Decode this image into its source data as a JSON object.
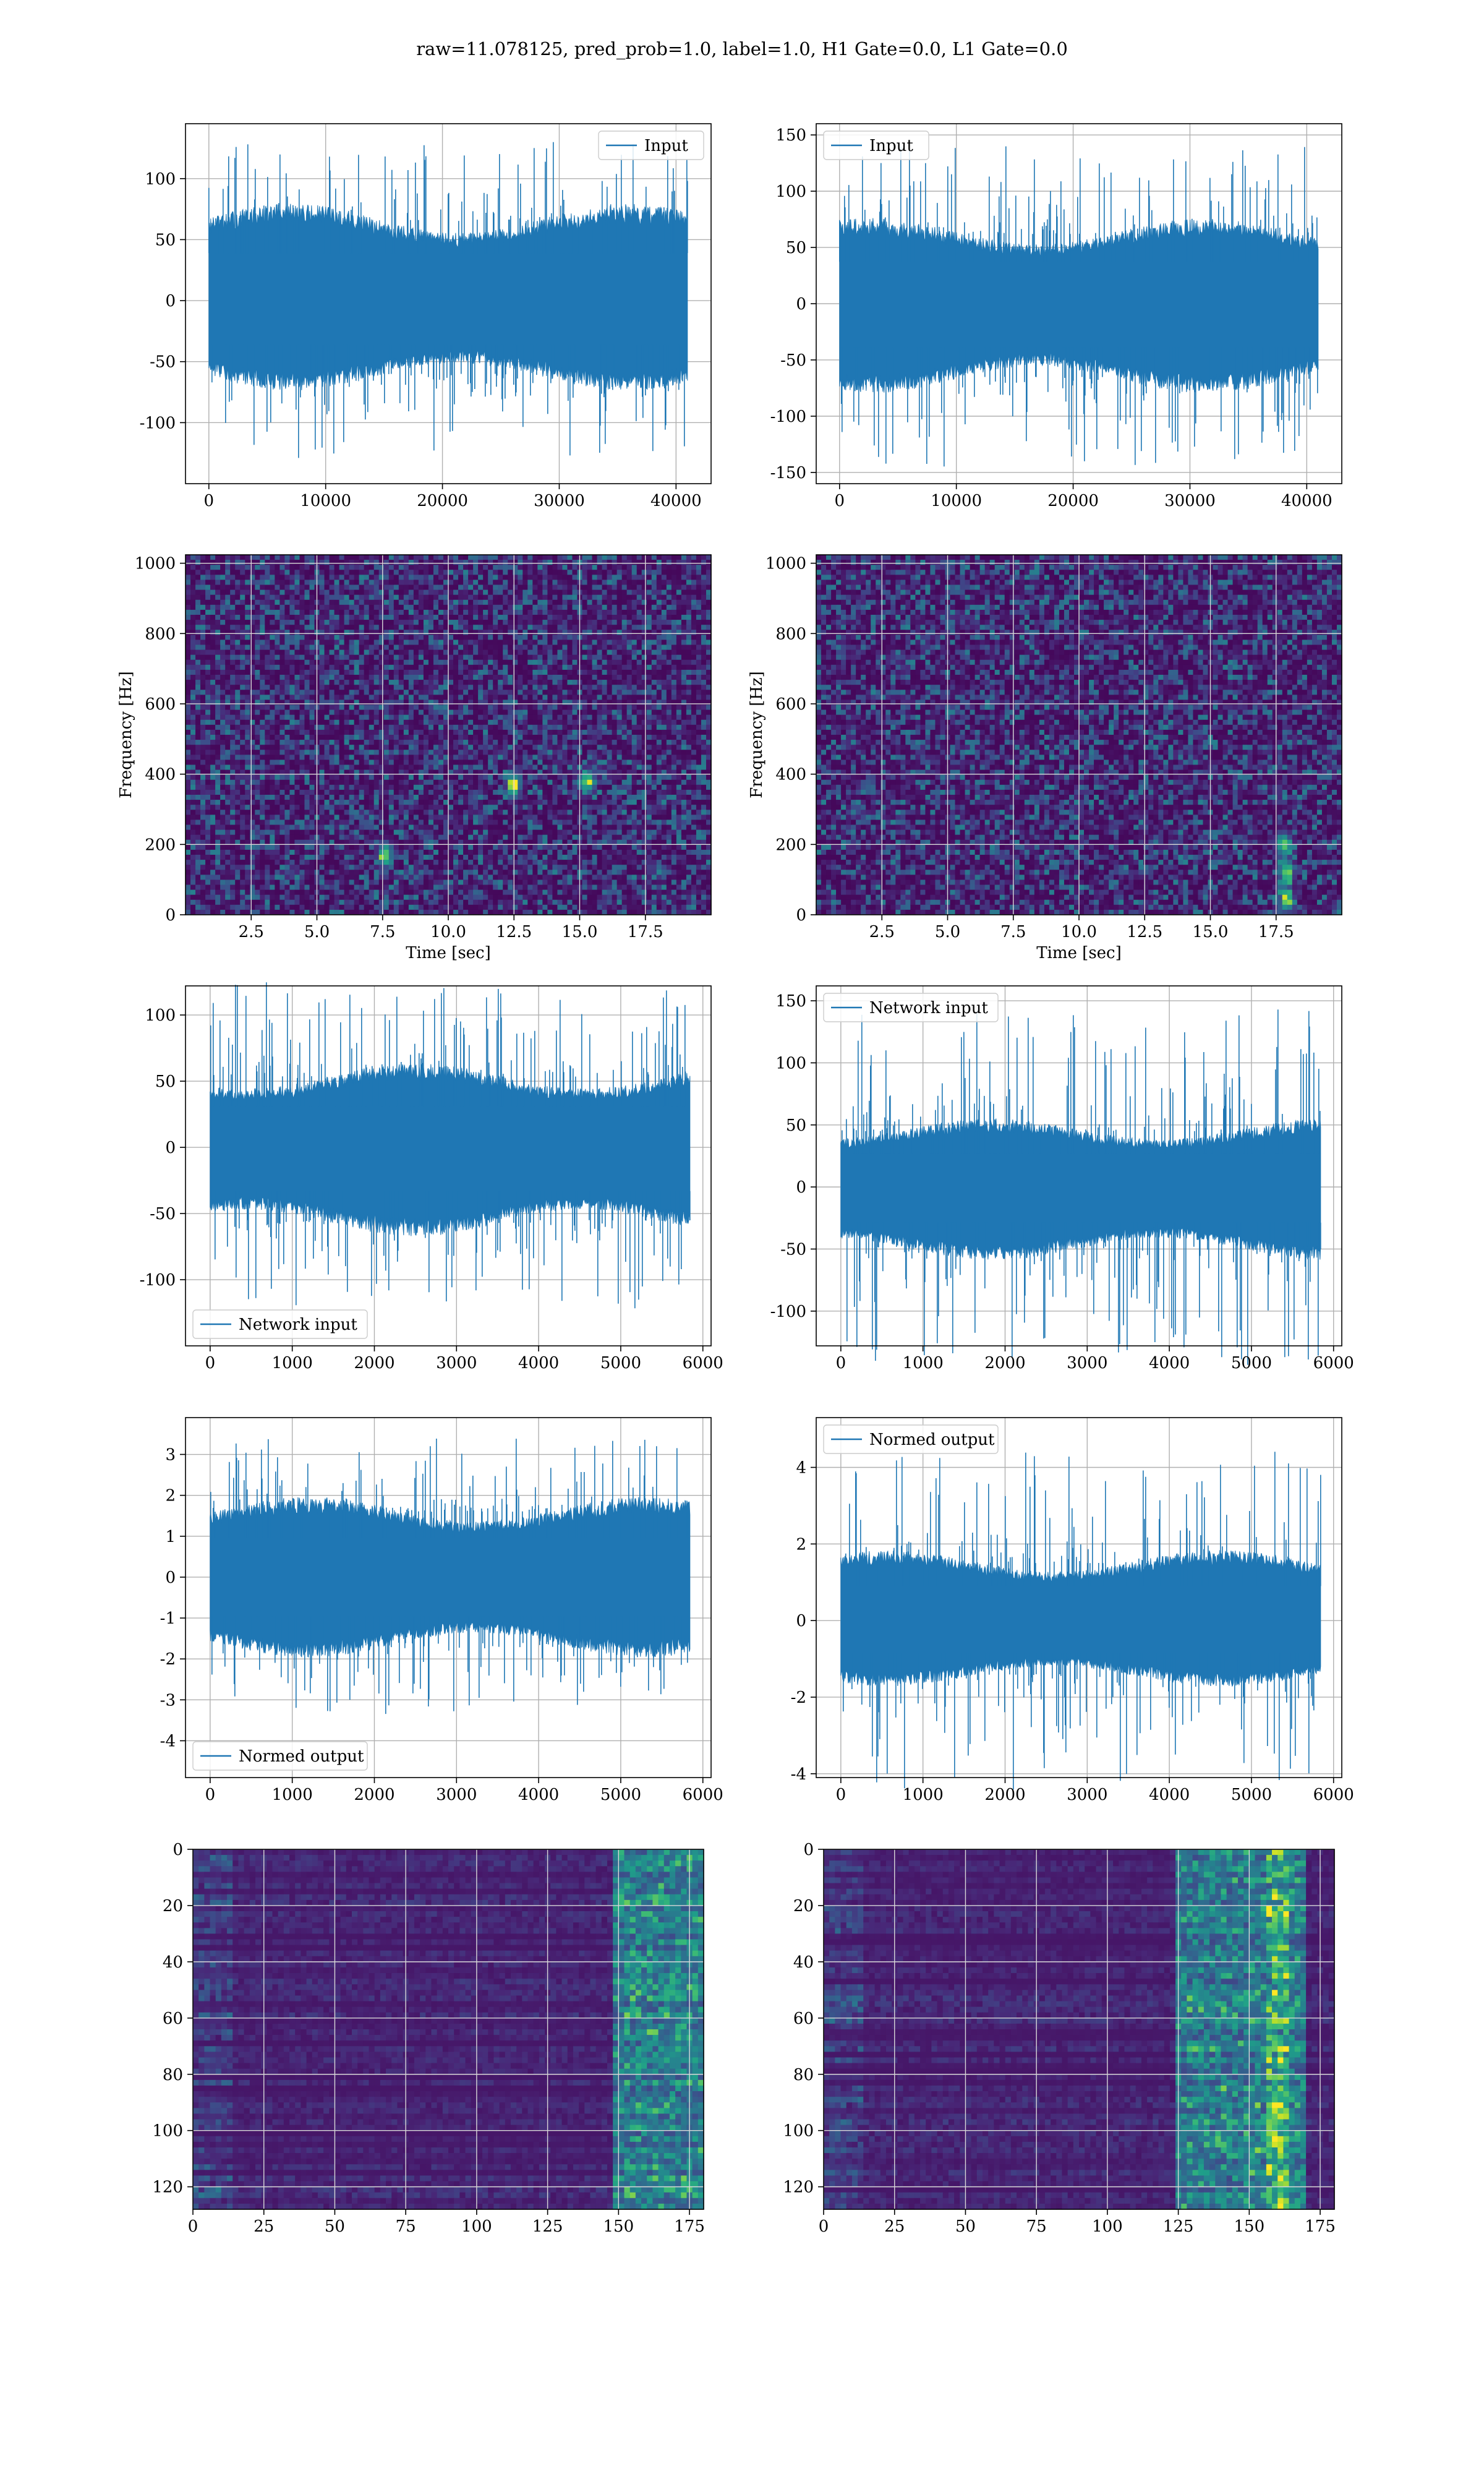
{
  "suptitle": "raw=11.078125, pred_prob=1.0, label=1.0, H1 Gate=0.0, L1 Gate=0.0",
  "colors": {
    "line": "#1f77b4",
    "grid": "#b0b0b0",
    "viridis_low": "#440154",
    "viridis_mid": "#21918c",
    "viridis_high": "#fde725"
  },
  "chart_data": [
    {
      "id": "h1-input",
      "type": "line",
      "legend": "Input",
      "legend_loc": "upper right",
      "xlim": [
        -2000,
        43000
      ],
      "ylim": [
        -150,
        145
      ],
      "xticks": [
        0,
        10000,
        20000,
        30000,
        40000
      ],
      "yticks": [
        -100,
        -50,
        0,
        50,
        100
      ],
      "x_range": [
        0,
        40960
      ],
      "band": [
        -60,
        65
      ],
      "spike_amp": 130
    },
    {
      "id": "l1-input",
      "type": "line",
      "legend": "Input",
      "legend_loc": "upper left",
      "xlim": [
        -2000,
        43000
      ],
      "ylim": [
        -160,
        160
      ],
      "xticks": [
        0,
        10000,
        20000,
        30000,
        40000
      ],
      "yticks": [
        -150,
        -100,
        -50,
        0,
        50,
        100,
        150
      ],
      "x_range": [
        0,
        40960
      ],
      "band": [
        -65,
        62
      ],
      "spike_amp": 145
    },
    {
      "id": "h1-spectrogram",
      "type": "heatmap",
      "xlabel": "Time [sec]",
      "ylabel": "Frequency [Hz]",
      "xlim": [
        0,
        20
      ],
      "ylim": [
        0,
        1024
      ],
      "xticks": [
        2.5,
        5.0,
        7.5,
        10.0,
        12.5,
        15.0,
        17.5
      ],
      "xtick_labels": [
        "2.5",
        "5.0",
        "7.5",
        "10.0",
        "12.5",
        "15.0",
        "17.5"
      ],
      "yticks": [
        0,
        200,
        400,
        600,
        800,
        1000
      ],
      "colormap": "viridis",
      "hot_spots": [
        [
          12.5,
          370
        ],
        [
          15.3,
          380
        ],
        [
          7.6,
          170
        ]
      ]
    },
    {
      "id": "l1-spectrogram",
      "type": "heatmap",
      "xlabel": "Time [sec]",
      "ylabel": "Frequency [Hz]",
      "xlim": [
        0,
        20
      ],
      "ylim": [
        0,
        1024
      ],
      "xticks": [
        2.5,
        5.0,
        7.5,
        10.0,
        12.5,
        15.0,
        17.5
      ],
      "xtick_labels": [
        "2.5",
        "5.0",
        "7.5",
        "10.0",
        "12.5",
        "15.0",
        "17.5"
      ],
      "yticks": [
        0,
        200,
        400,
        600,
        800,
        1000
      ],
      "colormap": "viridis",
      "hot_spots": [
        [
          17.9,
          40
        ],
        [
          17.9,
          120
        ],
        [
          17.8,
          200
        ]
      ]
    },
    {
      "id": "h1-network-input",
      "type": "line",
      "legend": "Network input",
      "legend_loc": "lower left",
      "xlim": [
        -300,
        6100
      ],
      "ylim": [
        -150,
        122
      ],
      "xticks": [
        0,
        1000,
        2000,
        3000,
        4000,
        5000,
        6000
      ],
      "yticks": [
        -100,
        -50,
        0,
        50,
        100
      ],
      "x_range": [
        0,
        5840
      ],
      "band": [
        -55,
        52
      ],
      "spike_amp": 125
    },
    {
      "id": "l1-network-input",
      "type": "line",
      "legend": "Network input",
      "legend_loc": "upper left",
      "xlim": [
        -300,
        6100
      ],
      "ylim": [
        -128,
        162
      ],
      "xticks": [
        0,
        1000,
        2000,
        3000,
        4000,
        5000,
        6000
      ],
      "yticks": [
        -100,
        -50,
        0,
        50,
        100,
        150
      ],
      "x_range": [
        0,
        5840
      ],
      "band": [
        -48,
        45
      ],
      "spike_amp": 145
    },
    {
      "id": "h1-normed-output",
      "type": "line",
      "legend": "Normed output",
      "legend_loc": "lower left",
      "xlim": [
        -300,
        6100
      ],
      "ylim": [
        -4.9,
        3.9
      ],
      "xticks": [
        0,
        1000,
        2000,
        3000,
        4000,
        5000,
        6000
      ],
      "yticks": [
        -4,
        -3,
        -2,
        -1,
        0,
        1,
        2,
        3
      ],
      "x_range": [
        0,
        5840
      ],
      "band": [
        -1.6,
        1.6
      ],
      "spike_amp": 3.4
    },
    {
      "id": "l1-normed-output",
      "type": "line",
      "legend": "Normed output",
      "legend_loc": "upper left",
      "xlim": [
        -300,
        6100
      ],
      "ylim": [
        -4.1,
        5.3
      ],
      "xticks": [
        0,
        1000,
        2000,
        3000,
        4000,
        5000,
        6000
      ],
      "yticks": [
        -4,
        -2,
        0,
        2,
        4
      ],
      "x_range": [
        0,
        5840
      ],
      "band": [
        -1.4,
        1.5
      ],
      "spike_amp": 4.5
    },
    {
      "id": "h1-feature-map",
      "type": "heatmap",
      "colormap": "viridis",
      "xlim": [
        0,
        180
      ],
      "ylim": [
        128,
        0
      ],
      "xticks": [
        0,
        25,
        50,
        75,
        100,
        125,
        150,
        175
      ],
      "yticks": [
        0,
        20,
        40,
        60,
        80,
        100,
        120
      ],
      "hot_region": [
        148,
        180
      ]
    },
    {
      "id": "l1-feature-map",
      "type": "heatmap",
      "colormap": "viridis",
      "xlim": [
        0,
        180
      ],
      "ylim": [
        128,
        0
      ],
      "xticks": [
        0,
        25,
        50,
        75,
        100,
        125,
        150,
        175
      ],
      "yticks": [
        0,
        20,
        40,
        60,
        80,
        100,
        120
      ],
      "hot_region": [
        124,
        170
      ],
      "hot_column": 160
    }
  ]
}
